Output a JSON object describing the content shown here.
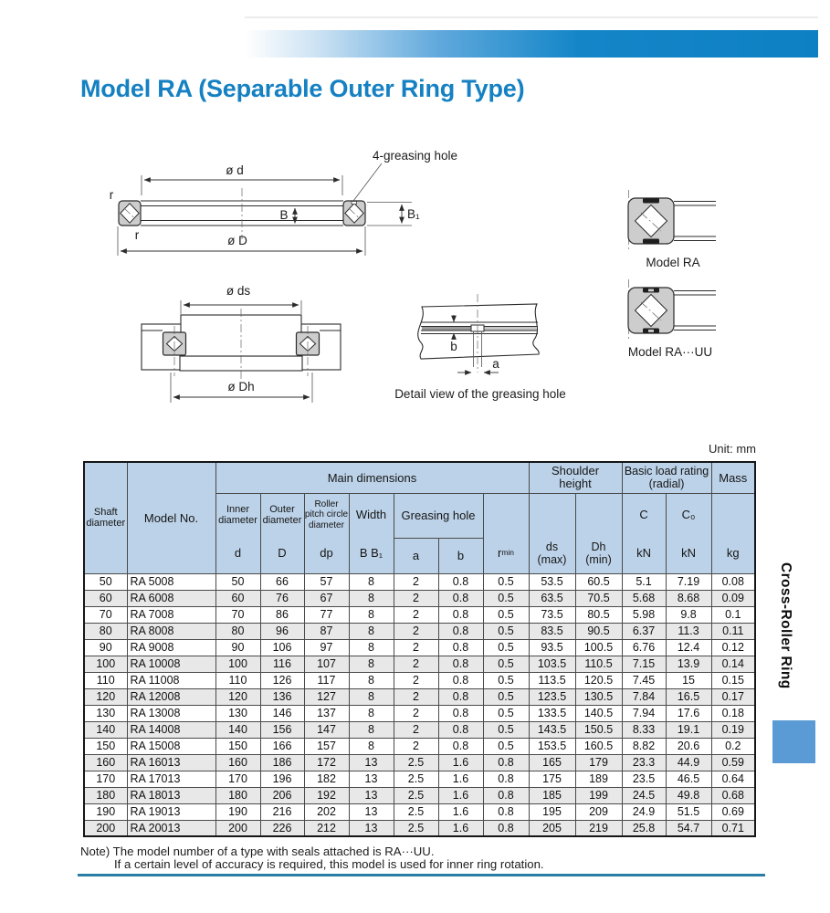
{
  "page": {
    "title": "Model RA (Separable Outer Ring Type)",
    "unit_label": "Unit: mm",
    "note_line1": "Note) The model number of a type with seals attached is RA···UU.",
    "note_line2": "If a certain level of accuracy is required, this model is used for inner ring rotation.",
    "side_tab": "Cross-Roller Ring"
  },
  "colors": {
    "title_blue": "#1581c2",
    "header_bg": "#bcd2e8",
    "row_alt_gray": "#e8e8e8",
    "rule_teal": "#2a7ea6",
    "side_square_blue": "#5b9bd5"
  },
  "diagram": {
    "greasing_hole_label": "4-greasing hole",
    "dim_d": "ø d",
    "dim_D": "ø D",
    "dim_B": "B",
    "dim_B1": "B₁",
    "r_top": "r",
    "r_bottom": "r",
    "dim_ds": "ø ds",
    "dim_Dh": "ø Dh",
    "dim_a": "a",
    "dim_b": "b",
    "detail_caption": "Detail view of the greasing hole",
    "model_ra_label": "Model RA",
    "model_ra_uu_label": "Model RA···UU"
  },
  "table": {
    "headers": {
      "shaft_diameter": "Shaft\ndiameter",
      "model_no": "Model No.",
      "main_dimensions": "Main dimensions",
      "shoulder_height": "Shoulder\nheight",
      "basic_load_rating": "Basic load rating\n(radial)",
      "mass": "Mass",
      "inner_diameter": "Inner\ndiameter",
      "outer_diameter": "Outer\ndiameter",
      "roller_pitch_circle_diameter": "Roller\npitch circle\ndiameter",
      "width": "Width",
      "greasing_hole": "Greasing hole",
      "d": "d",
      "D": "D",
      "dp": "dp",
      "b_b1": "B B₁",
      "a": "a",
      "b": "b",
      "r_symbol": "r",
      "r_sub": "min",
      "ds_max": "ds\n(max)",
      "dh_min": "Dh\n(min)",
      "c": "C",
      "c0": "C₀",
      "kn_c": "kN",
      "kn_c0": "kN",
      "kg": "kg"
    },
    "rows": [
      [
        "50",
        "RA 5008",
        "50",
        "66",
        "57",
        "8",
        "2",
        "0.8",
        "0.5",
        "53.5",
        "60.5",
        "5.1",
        "7.19",
        "0.08"
      ],
      [
        "60",
        "RA 6008",
        "60",
        "76",
        "67",
        "8",
        "2",
        "0.8",
        "0.5",
        "63.5",
        "70.5",
        "5.68",
        "8.68",
        "0.09"
      ],
      [
        "70",
        "RA 7008",
        "70",
        "86",
        "77",
        "8",
        "2",
        "0.8",
        "0.5",
        "73.5",
        "80.5",
        "5.98",
        "9.8",
        "0.1"
      ],
      [
        "80",
        "RA 8008",
        "80",
        "96",
        "87",
        "8",
        "2",
        "0.8",
        "0.5",
        "83.5",
        "90.5",
        "6.37",
        "11.3",
        "0.11"
      ],
      [
        "90",
        "RA 9008",
        "90",
        "106",
        "97",
        "8",
        "2",
        "0.8",
        "0.5",
        "93.5",
        "100.5",
        "6.76",
        "12.4",
        "0.12"
      ],
      [
        "100",
        "RA 10008",
        "100",
        "116",
        "107",
        "8",
        "2",
        "0.8",
        "0.5",
        "103.5",
        "110.5",
        "7.15",
        "13.9",
        "0.14"
      ],
      [
        "110",
        "RA 11008",
        "110",
        "126",
        "117",
        "8",
        "2",
        "0.8",
        "0.5",
        "113.5",
        "120.5",
        "7.45",
        "15",
        "0.15"
      ],
      [
        "120",
        "RA 12008",
        "120",
        "136",
        "127",
        "8",
        "2",
        "0.8",
        "0.5",
        "123.5",
        "130.5",
        "7.84",
        "16.5",
        "0.17"
      ],
      [
        "130",
        "RA 13008",
        "130",
        "146",
        "137",
        "8",
        "2",
        "0.8",
        "0.5",
        "133.5",
        "140.5",
        "7.94",
        "17.6",
        "0.18"
      ],
      [
        "140",
        "RA 14008",
        "140",
        "156",
        "147",
        "8",
        "2",
        "0.8",
        "0.5",
        "143.5",
        "150.5",
        "8.33",
        "19.1",
        "0.19"
      ],
      [
        "150",
        "RA 15008",
        "150",
        "166",
        "157",
        "8",
        "2",
        "0.8",
        "0.5",
        "153.5",
        "160.5",
        "8.82",
        "20.6",
        "0.2"
      ],
      [
        "160",
        "RA 16013",
        "160",
        "186",
        "172",
        "13",
        "2.5",
        "1.6",
        "0.8",
        "165",
        "179",
        "23.3",
        "44.9",
        "0.59"
      ],
      [
        "170",
        "RA 17013",
        "170",
        "196",
        "182",
        "13",
        "2.5",
        "1.6",
        "0.8",
        "175",
        "189",
        "23.5",
        "46.5",
        "0.64"
      ],
      [
        "180",
        "RA 18013",
        "180",
        "206",
        "192",
        "13",
        "2.5",
        "1.6",
        "0.8",
        "185",
        "199",
        "24.5",
        "49.8",
        "0.68"
      ],
      [
        "190",
        "RA 19013",
        "190",
        "216",
        "202",
        "13",
        "2.5",
        "1.6",
        "0.8",
        "195",
        "209",
        "24.9",
        "51.5",
        "0.69"
      ],
      [
        "200",
        "RA 20013",
        "200",
        "226",
        "212",
        "13",
        "2.5",
        "1.6",
        "0.8",
        "205",
        "219",
        "25.8",
        "54.7",
        "0.71"
      ]
    ]
  }
}
